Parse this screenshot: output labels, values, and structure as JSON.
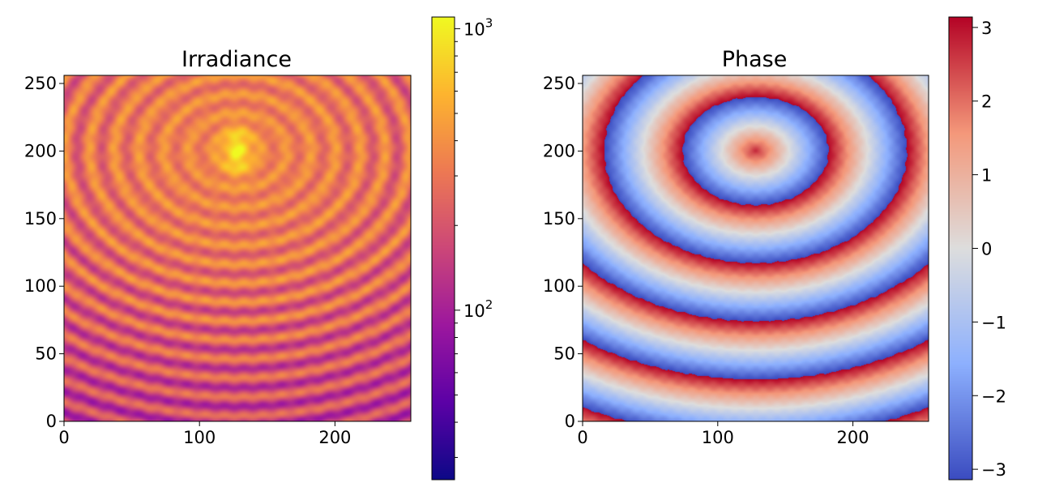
{
  "chart_data": [
    {
      "type": "heatmap",
      "title": "Irradiance",
      "xlabel": "",
      "ylabel": "",
      "xlim": [
        0,
        256
      ],
      "ylim": [
        0,
        256
      ],
      "xticks": [
        0,
        100,
        200
      ],
      "yticks": [
        0,
        50,
        100,
        150,
        200,
        250
      ],
      "colormap": [
        "#0d0887",
        "#5c01a6",
        "#9c179e",
        "#cc4778",
        "#ed7953",
        "#fdb42f",
        "#f0f921"
      ],
      "peak": {
        "x": 128,
        "y": 200
      },
      "colorbar": {
        "scale": "log",
        "range": [
          25,
          1100
        ],
        "ticks": [
          {
            "value": 100,
            "base": "10",
            "exp": "2"
          },
          {
            "value": 1000,
            "base": "10",
            "exp": "3"
          }
        ]
      }
    },
    {
      "type": "heatmap",
      "title": "Phase",
      "xlabel": "",
      "ylabel": "",
      "xlim": [
        0,
        256
      ],
      "ylim": [
        0,
        256
      ],
      "xticks": [
        0,
        100,
        200
      ],
      "yticks": [
        0,
        50,
        100,
        150,
        200,
        250
      ],
      "colormap": [
        "#3b4cc0",
        "#8db0fe",
        "#dddddd",
        "#f4987a",
        "#b40426"
      ],
      "center": {
        "x": 128,
        "y": 200
      },
      "colorbar": {
        "scale": "linear",
        "range": [
          -3.14159,
          3.14159
        ],
        "ticks": [
          {
            "value": 3,
            "label": "3"
          },
          {
            "value": 2,
            "label": "2"
          },
          {
            "value": 1,
            "label": "1"
          },
          {
            "value": 0,
            "label": "0"
          },
          {
            "value": -1,
            "label": "−1"
          },
          {
            "value": -2,
            "label": "−2"
          },
          {
            "value": -3,
            "label": "−3"
          }
        ]
      }
    }
  ]
}
